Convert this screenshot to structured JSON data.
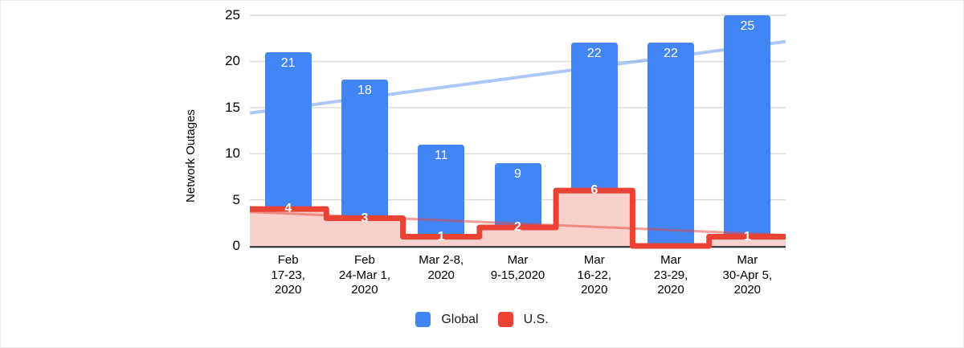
{
  "page": {
    "background": "#ffffff",
    "border_color": "#ececec"
  },
  "chart_data": {
    "type": "bar",
    "subtype": "combo: vertical bars + stepped area line + linear trendlines",
    "title": "",
    "ylabel": "Network Outages",
    "xlabel": "",
    "ylim": [
      0,
      25
    ],
    "yticks": [
      0,
      5,
      10,
      15,
      20,
      25
    ],
    "grid": true,
    "legend_position": "bottom",
    "categories": [
      "Feb\n17-23,\n2020",
      "Feb\n24-Mar 1,\n2020",
      "Mar 2-8,\n2020",
      "Mar\n9-15,2020",
      "Mar\n16-22,\n2020",
      "Mar\n23-29,\n2020",
      "Mar\n30-Apr 5,\n2020"
    ],
    "series": [
      {
        "name": "Global",
        "type": "bar",
        "color": "#4285F4",
        "values": [
          21,
          18,
          11,
          9,
          22,
          22,
          25
        ]
      },
      {
        "name": "U.S.",
        "type": "stepped_area",
        "color": "#EA4335",
        "area_fill": "#F9D0CB",
        "values": [
          4,
          3,
          1,
          2,
          6,
          0,
          1
        ]
      }
    ],
    "data_labels": {
      "color": "#ffffff",
      "show_zero": false
    },
    "trendlines": [
      {
        "series": "Global",
        "type": "linear",
        "start_value": 14.4,
        "end_value": 22.15,
        "color": "rgba(66,133,244,0.45)",
        "width": 4
      },
      {
        "series": "U.S.",
        "type": "linear",
        "start_value": 3.68,
        "end_value": 1.18,
        "color": "rgba(234,67,53,0.5)",
        "width": 3
      }
    ],
    "axis_colors": {
      "grid": "#D9D9D9",
      "baseline": "#2F2F2F",
      "text": "#000000"
    }
  }
}
